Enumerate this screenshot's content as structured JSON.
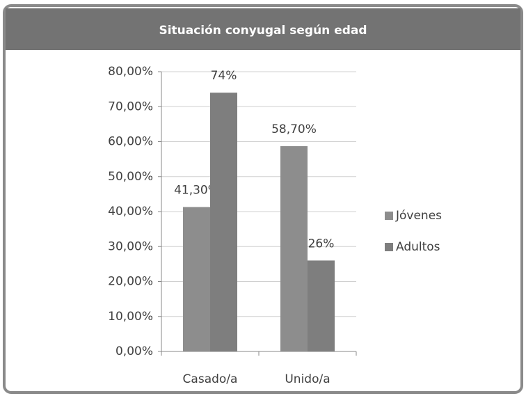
{
  "chart_data": {
    "type": "bar",
    "title": "Situación conyugal según edad",
    "categories": [
      "Casado/a",
      "Unido/a"
    ],
    "series": [
      {
        "name": "Jóvenes",
        "color": "#8d8d8d",
        "values": [
          41.3,
          58.7
        ],
        "value_labels": [
          "41,30%",
          "58,70%"
        ]
      },
      {
        "name": "Adultos",
        "color": "#7e7e7e",
        "values": [
          74,
          26
        ],
        "value_labels": [
          "74%",
          "26%"
        ]
      }
    ],
    "ylim": [
      0,
      80
    ],
    "yticks": [
      {
        "value": 0,
        "label": "0,00%"
      },
      {
        "value": 10,
        "label": "10,00%"
      },
      {
        "value": 20,
        "label": "20,00%"
      },
      {
        "value": 30,
        "label": "30,00%"
      },
      {
        "value": 40,
        "label": "40,00%"
      },
      {
        "value": 50,
        "label": "50,00%"
      },
      {
        "value": 60,
        "label": "60,00%"
      },
      {
        "value": 70,
        "label": "70,00%"
      },
      {
        "value": 80,
        "label": "80,00%"
      }
    ],
    "grid": true,
    "legend": "right"
  }
}
